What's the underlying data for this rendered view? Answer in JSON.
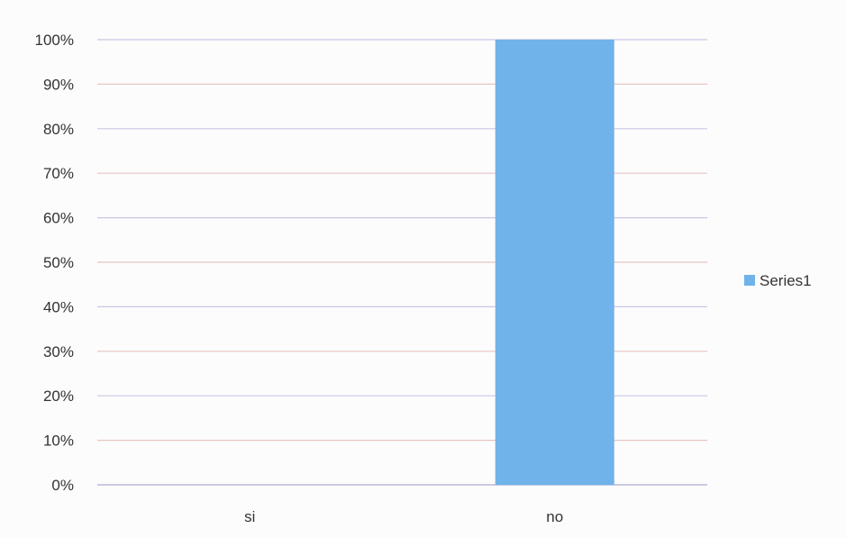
{
  "chart_data": {
    "type": "bar",
    "title": "",
    "xlabel": "",
    "ylabel": "",
    "categories": [
      "si",
      "no"
    ],
    "series": [
      {
        "name": "Series1",
        "values": [
          0,
          100
        ],
        "color": "#6fb3ea"
      }
    ],
    "ylim": [
      0,
      100
    ],
    "ytick_values": [
      0,
      10,
      20,
      30,
      40,
      50,
      60,
      70,
      80,
      90,
      100
    ],
    "ytick_labels": [
      "0%",
      "10%",
      "20%",
      "30%",
      "40%",
      "50%",
      "60%",
      "70%",
      "80%",
      "90%",
      "100%"
    ],
    "grid": true,
    "gridline_colors": [
      "#c9c7e6",
      "#e7c4c4"
    ],
    "legend_position": "right"
  }
}
